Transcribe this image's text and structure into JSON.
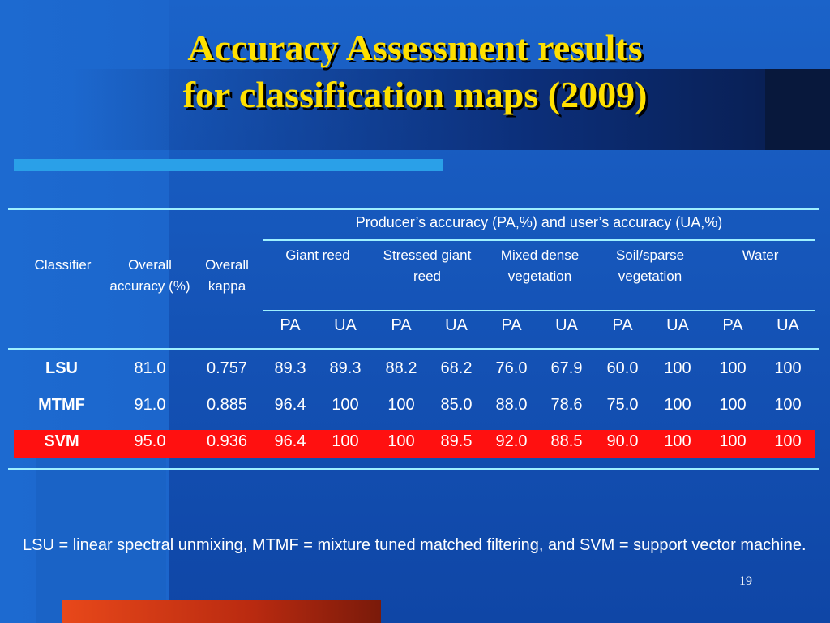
{
  "slide": {
    "title_line1": "Accuracy Assessment results",
    "title_line2": "for classification maps (2009)",
    "page_number": "19",
    "footnote": "LSU = linear spectral unmixing, MTMF = mixture tuned matched filtering, and SVM = support vector machine."
  },
  "table": {
    "h_classifier": "Classifier",
    "h_overall_acc": "Overall accuracy (%)",
    "h_overall_kappa": "Overall kappa",
    "h_group": "Producer’s accuracy (PA,%) and user’s accuracy (UA,%)",
    "classes": [
      "Giant reed",
      "Stressed giant reed",
      "Mixed dense vegetation",
      "Soil/sparse vegetation",
      "Water"
    ],
    "sub": [
      "PA",
      "UA",
      "PA",
      "UA",
      "PA",
      "UA",
      "PA",
      "UA",
      "PA",
      "UA"
    ],
    "rows": [
      {
        "name": "LSU",
        "oa": "81.0",
        "kappa": "0.757",
        "vals": [
          "89.3",
          "89.3",
          "88.2",
          "68.2",
          "76.0",
          "67.9",
          "60.0",
          "100",
          "100",
          "100"
        ]
      },
      {
        "name": "MTMF",
        "oa": "91.0",
        "kappa": "0.885",
        "vals": [
          "96.4",
          "100",
          "100",
          "85.0",
          "88.0",
          "78.6",
          "75.0",
          "100",
          "100",
          "100"
        ]
      },
      {
        "name": "SVM",
        "oa": "95.0",
        "kappa": "0.936",
        "vals": [
          "96.4",
          "100",
          "100",
          "89.5",
          "92.0",
          "88.5",
          "90.0",
          "100",
          "100",
          "100"
        ]
      }
    ]
  },
  "colors": {
    "title": "#ffe000",
    "highlight_row": "#ff1010",
    "rules": "#9ff0ff"
  }
}
